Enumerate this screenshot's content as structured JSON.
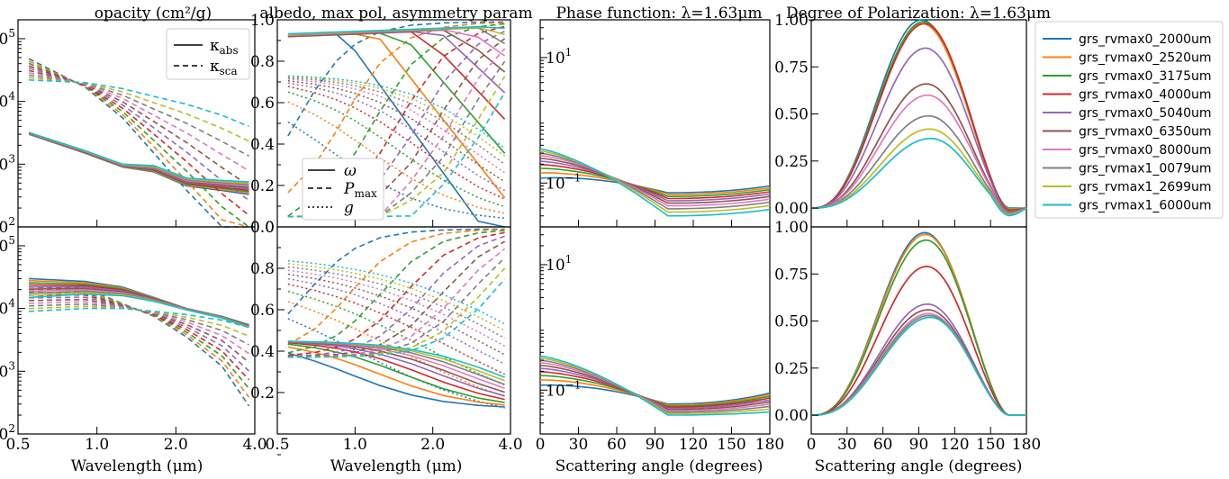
{
  "titles": {
    "p1": "opacity (cm²/g)",
    "p2": "albedo, max pol, asymmetry param",
    "p3": "Phase function: λ=1.63μm",
    "p4": "Degree of Polarization: λ=1.63μm"
  },
  "xlabels": {
    "wavelength": "Wavelength (μm)",
    "angle": "Scattering angle (degrees)"
  },
  "legend_opacity": {
    "abs": "κbₐₑ",
    "abs_main": "κ",
    "abs_sub": "abs",
    "sca_main": "κ",
    "sca_sub": "sca"
  },
  "legend_albedo": {
    "omega": "ω",
    "pmax_main": "P",
    "pmax_sub": "max",
    "g": "g"
  },
  "series_colors": [
    "#1f77b4",
    "#ff7f0e",
    "#2ca02c",
    "#d62728",
    "#9467bd",
    "#8c564b",
    "#e377c2",
    "#7f7f7f",
    "#bcbd22",
    "#17becf"
  ],
  "chart_data": [
    {
      "id": "opacity",
      "type": "line",
      "title": "opacity (cm²/g)",
      "xlabel": "Wavelength (μm)",
      "xscale": "log",
      "yscale": "log",
      "xlim": [
        0.5,
        4.0
      ],
      "ylim": [
        100,
        200000
      ],
      "xticks": [
        "0.5",
        "1.0",
        "2.0",
        "4.0"
      ],
      "yticks": [
        "10²",
        "10³",
        "10⁴",
        "10⁵"
      ],
      "x": [
        0.55,
        0.9,
        1.25,
        1.65,
        2.2,
        3.0,
        3.8
      ],
      "rows": [
        {
          "kabs_first": [
            3000,
            1500,
            900,
            750,
            450,
            380,
            330
          ],
          "kabs_last": [
            3200,
            1650,
            1000,
            950,
            600,
            550,
            520
          ],
          "ksca_first": [
            48000,
            17000,
            5500,
            1500,
            380,
            80,
            30
          ],
          "ksca_last": [
            22000,
            20000,
            16000,
            12000,
            9000,
            6000,
            4000
          ]
        },
        {
          "kabs_first": [
            30000,
            27000,
            22000,
            15000,
            10000,
            7500,
            5500
          ],
          "kabs_last": [
            15000,
            17000,
            16000,
            13000,
            9500,
            7000,
            5000
          ],
          "ksca_first": [
            22000,
            21000,
            12000,
            7500,
            3500,
            1200,
            280
          ],
          "ksca_last": [
            9000,
            10000,
            10000,
            9000,
            8000,
            6500,
            5000
          ]
        }
      ],
      "legend": [
        "κabs",
        "κsca"
      ]
    },
    {
      "id": "albedo",
      "type": "line",
      "title": "albedo, max pol, asymmetry param",
      "xlabel": "Wavelength (μm)",
      "xscale": "log",
      "ylim": [
        0,
        1
      ],
      "xticks": [
        "0.5",
        "1.0",
        "2.0",
        "4.0"
      ],
      "yticks": [
        "0.0",
        "0.2",
        "0.4",
        "0.6",
        "0.8",
        "1.0"
      ],
      "legend": [
        "ω",
        "Pmax",
        "g"
      ]
    },
    {
      "id": "phase",
      "type": "line",
      "title": "Phase function: λ=1.63μm",
      "xlabel": "Scattering angle (degrees)",
      "xlim": [
        0,
        180
      ],
      "yscale": "log",
      "ylim": [
        0.02,
        40
      ],
      "xticks": [
        "0",
        "30",
        "60",
        "90",
        "120",
        "150",
        "180"
      ],
      "yticks": [
        "10⁻¹",
        "10¹"
      ]
    },
    {
      "id": "polarization",
      "type": "line",
      "title": "Degree of Polarization: λ=1.63μm",
      "xlabel": "Scattering angle (degrees)",
      "xlim": [
        0,
        180
      ],
      "ylim": [
        -0.1,
        1.0
      ],
      "xticks": [
        "0",
        "30",
        "60",
        "90",
        "120",
        "150",
        "180"
      ],
      "yticks": [
        "0.00",
        "0.25",
        "0.50",
        "0.75",
        "1.00"
      ],
      "peaks_top": [
        1.0,
        0.98,
        0.99,
        0.98,
        0.85,
        0.66,
        0.6,
        0.49,
        0.42,
        0.37
      ],
      "peaks_bottom": [
        0.97,
        0.96,
        0.93,
        0.79,
        0.59,
        0.56,
        0.54,
        0.53,
        0.52,
        0.52
      ]
    }
  ],
  "legend": {
    "entries": [
      "grs_rvmax0_2000um",
      "grs_rvmax0_2520um",
      "grs_rvmax0_3175um",
      "grs_rvmax0_4000um",
      "grs_rvmax0_5040um",
      "grs_rvmax0_6350um",
      "grs_rvmax0_8000um",
      "grs_rvmax1_0079um",
      "grs_rvmax1_2699um",
      "grs_rvmax1_6000um"
    ],
    "placement": "right"
  }
}
